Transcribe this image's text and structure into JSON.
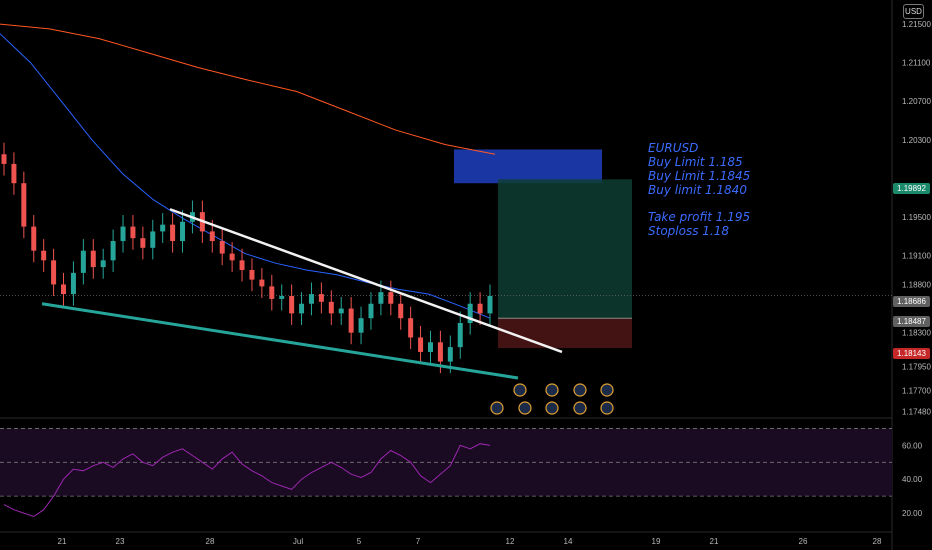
{
  "currency_button": "USD",
  "annotation": {
    "lines": [
      "EURUSD",
      "Buy Limit 1.185",
      "Buy Limit 1.1845",
      "Buy limit 1.1840"
    ],
    "lines2": [
      "Take profit  1.195",
      "Stoploss 1.18"
    ]
  },
  "price_tags": [
    {
      "label": "1.19892",
      "color": "#1b8a6b"
    },
    {
      "label": "1.18686",
      "color": "#606060"
    },
    {
      "label": "1.18487",
      "color": "#606060"
    },
    {
      "label": "1.18143",
      "color": "#c62828"
    }
  ],
  "colors": {
    "up": "#26a69a",
    "down": "#ef5350",
    "ma_fast": "#2962ff",
    "ma_slow": "#ff5722",
    "trendline_upper": "#f2f2f2",
    "trendline_lower": "#26a69a",
    "rsi": "#9c27b0",
    "buy_zone": "#1e3fbf",
    "take_profit_zone": "#0f3d33",
    "stop_zone": "#4a1414"
  },
  "chart_data": {
    "type": "candlestick",
    "symbol": "EURUSD",
    "y_axis_ticks": [
      "1.21500",
      "1.21100",
      "1.20700",
      "1.20300",
      "1.19500",
      "1.19100",
      "1.18800",
      "1.18300",
      "1.17950",
      "1.17700",
      "1.17480"
    ],
    "y_axis_values": [
      1.215,
      1.211,
      1.207,
      1.203,
      1.195,
      1.191,
      1.188,
      1.183,
      1.1795,
      1.177,
      1.1748
    ],
    "ylim": [
      1.1748,
      1.2175
    ],
    "x_axis_ticks": [
      "21",
      "23",
      "28",
      "Jul",
      "5",
      "7",
      "12",
      "14",
      "19",
      "21",
      "26",
      "28"
    ],
    "rsi": {
      "ticks": [
        "60.00",
        "40.00",
        "20.00"
      ],
      "tick_values": [
        60,
        40,
        20
      ],
      "bands": [
        70,
        50,
        30
      ],
      "ylim": [
        10,
        75
      ],
      "values": [
        25,
        22,
        20,
        18,
        22,
        30,
        40,
        46,
        45,
        48,
        50,
        47,
        52,
        55,
        50,
        48,
        53,
        56,
        58,
        54,
        50,
        46,
        52,
        56,
        49,
        45,
        42,
        38,
        36,
        34,
        40,
        44,
        47,
        50,
        47,
        43,
        41,
        44,
        52,
        57,
        54,
        50,
        42,
        38,
        43,
        48,
        60,
        58,
        61,
        60
      ]
    },
    "candles_ohlc_note": "approximate values read from chart",
    "closes": [
      1.2005,
      1.1985,
      1.194,
      1.1915,
      1.1905,
      1.188,
      1.187,
      1.1892,
      1.1915,
      1.1898,
      1.1905,
      1.1925,
      1.194,
      1.1928,
      1.1918,
      1.1935,
      1.1942,
      1.1925,
      1.1945,
      1.1955,
      1.1935,
      1.1925,
      1.1912,
      1.1905,
      1.1895,
      1.1885,
      1.1878,
      1.1865,
      1.1868,
      1.185,
      1.186,
      1.187,
      1.1862,
      1.185,
      1.1855,
      1.183,
      1.1845,
      1.186,
      1.1872,
      1.186,
      1.1845,
      1.1825,
      1.181,
      1.182,
      1.18,
      1.1815,
      1.184,
      1.186,
      1.185,
      1.1868
    ],
    "ma_fast": [
      1.214,
      1.211,
      1.207,
      1.203,
      1.1995,
      1.1968,
      1.1948,
      1.193,
      1.1912,
      1.1902,
      1.1895,
      1.189,
      1.1882,
      1.1875,
      1.187,
      1.1858,
      1.1845
    ],
    "ma_slow": [
      1.215,
      1.2145,
      1.2135,
      1.212,
      1.2105,
      1.2092,
      1.208,
      1.206,
      1.204,
      1.2025,
      1.2015
    ],
    "trendline_upper": [
      [
        1.1958,
        0
      ],
      [
        1.181,
        1
      ]
    ],
    "trendline_lower": [
      [
        1.186,
        0
      ],
      [
        1.1783,
        1
      ]
    ],
    "trade_setup": {
      "buy_zone": [
        1.1985,
        1.202
      ],
      "take_profit": 1.195,
      "entry": 1.1845,
      "stoploss": 1.18
    }
  }
}
